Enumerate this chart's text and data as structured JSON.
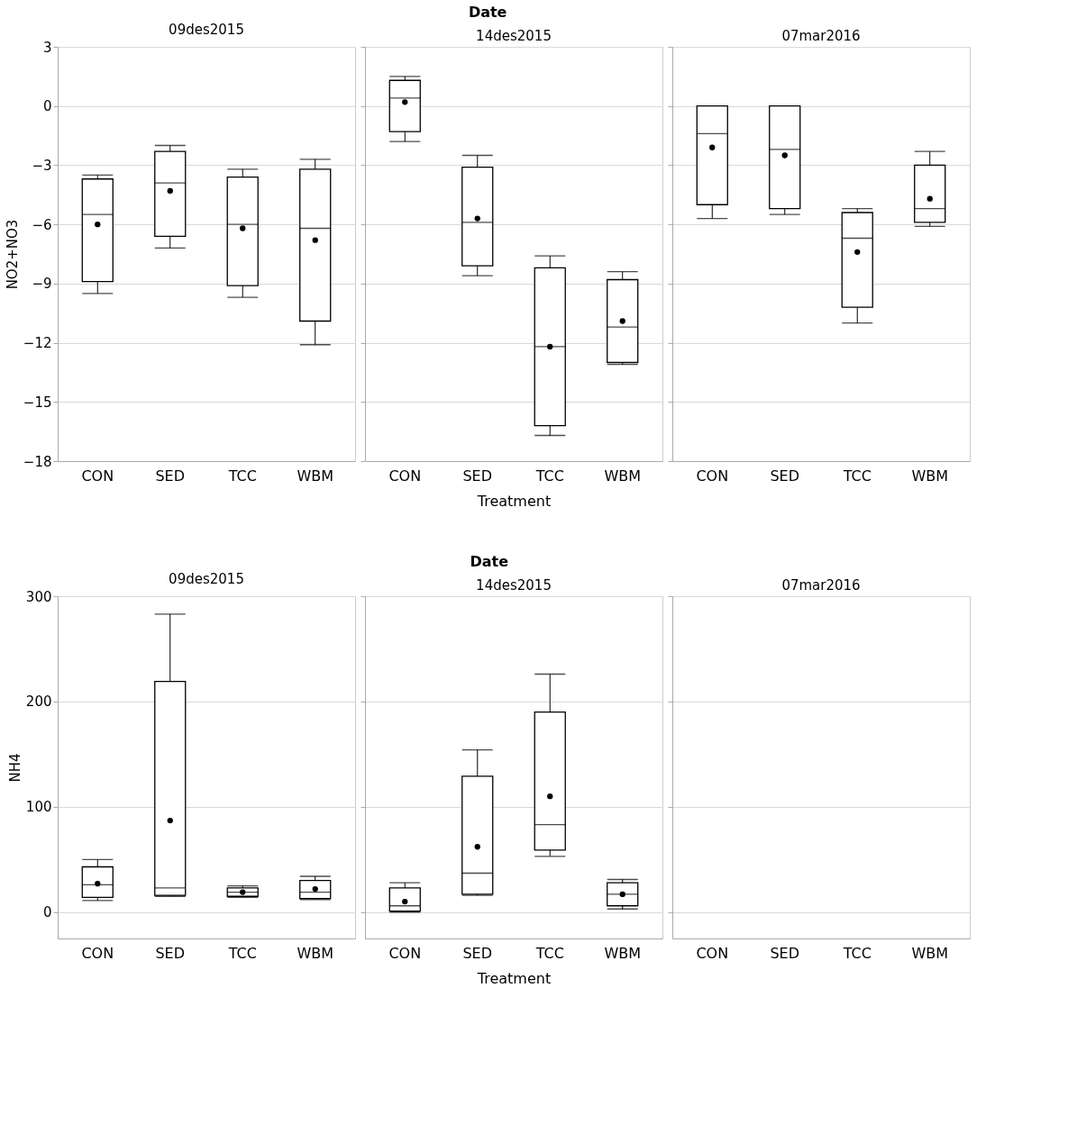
{
  "chart_data": [
    {
      "type": "box",
      "title": "09des2015",
      "annotations": [
        "Date"
      ],
      "ylabel": "NO2+NO3",
      "categories": [
        "CON",
        "SED",
        "TCC",
        "WBM"
      ],
      "ylim": [
        -18,
        3
      ],
      "yticks": [
        -18,
        -15,
        -12,
        -9,
        -6,
        -3,
        0,
        3
      ],
      "grid": "y",
      "color": "#000000",
      "boxes": [
        {
          "low": -9.5,
          "q1": -8.9,
          "median": -5.5,
          "q3": -3.7,
          "high": -3.5,
          "mean": -6.0
        },
        {
          "low": -7.2,
          "q1": -6.6,
          "median": -3.9,
          "q3": -2.3,
          "high": -2.0,
          "mean": -4.3
        },
        {
          "low": -9.7,
          "q1": -9.1,
          "median": -6.0,
          "q3": -3.6,
          "high": -3.2,
          "mean": -6.2
        },
        {
          "low": -12.1,
          "q1": -10.9,
          "median": -6.2,
          "q3": -3.2,
          "high": -2.7,
          "mean": -6.8
        }
      ]
    },
    {
      "type": "box",
      "title": "14des2015",
      "xlabel": "Treatment",
      "categories": [
        "CON",
        "SED",
        "TCC",
        "WBM"
      ],
      "ylim": [
        -18,
        3
      ],
      "yticks": [
        -18,
        -15,
        -12,
        -9,
        -6,
        -3,
        0,
        3
      ],
      "grid": "y",
      "tick_labels": "x",
      "color": "#000000",
      "boxes": [
        {
          "low": -1.8,
          "q1": -1.3,
          "median": 0.4,
          "q3": 1.3,
          "high": 1.5,
          "mean": 0.2
        },
        {
          "low": -8.6,
          "q1": -8.1,
          "median": -5.9,
          "q3": -3.1,
          "high": -2.5,
          "mean": -5.7
        },
        {
          "low": -16.7,
          "q1": -16.2,
          "median": -12.2,
          "q3": -8.2,
          "high": -7.6,
          "mean": -12.2
        },
        {
          "low": -13.1,
          "q1": -13.0,
          "median": -11.2,
          "q3": -8.8,
          "high": -8.4,
          "mean": -10.9
        }
      ]
    },
    {
      "type": "box",
      "title": "07mar2016",
      "categories": [
        "CON",
        "SED",
        "TCC",
        "WBM"
      ],
      "ylim": [
        -18,
        3
      ],
      "yticks": [
        -18,
        -15,
        -12,
        -9,
        -6,
        -3,
        0,
        3
      ],
      "grid": "y",
      "tick_labels": "x",
      "color": "#000000",
      "boxes": [
        {
          "low": -5.7,
          "q1": -5.0,
          "median": -1.4,
          "q3": 0.0,
          "high": 0.0,
          "mean": -2.1
        },
        {
          "low": -5.5,
          "q1": -5.2,
          "median": -2.2,
          "q3": 0.0,
          "high": 0.0,
          "mean": -2.5
        },
        {
          "low": -11.0,
          "q1": -10.2,
          "median": -6.7,
          "q3": -5.4,
          "high": -5.2,
          "mean": -7.4
        },
        {
          "low": -6.1,
          "q1": -5.9,
          "median": -5.2,
          "q3": -3.0,
          "high": -2.3,
          "mean": -4.7
        }
      ]
    },
    {
      "type": "box",
      "title": "09des2015",
      "annotations": [
        "Date"
      ],
      "ylabel": "NH4",
      "categories": [
        "CON",
        "SED",
        "TCC",
        "WBM"
      ],
      "ylim": [
        -25,
        300
      ],
      "yticks": [
        0,
        100,
        200,
        300
      ],
      "grid": "y",
      "color": "#000000",
      "boxes": [
        {
          "low": 11,
          "q1": 14,
          "median": 26,
          "q3": 43,
          "high": 50,
          "mean": 27
        },
        {
          "low": 15,
          "q1": 16,
          "median": 23,
          "q3": 219,
          "high": 283,
          "mean": 87
        },
        {
          "low": 14,
          "q1": 15,
          "median": 19,
          "q3": 23,
          "high": 25,
          "mean": 19
        },
        {
          "low": 12,
          "q1": 13,
          "median": 19,
          "q3": 30,
          "high": 34,
          "mean": 22
        }
      ]
    },
    {
      "type": "box",
      "title": "14des2015",
      "xlabel": "Treatment",
      "categories": [
        "CON",
        "SED",
        "TCC",
        "WBM"
      ],
      "ylim": [
        -25,
        300
      ],
      "yticks": [
        0,
        100,
        200,
        300
      ],
      "grid": "y",
      "tick_labels": "x",
      "color": "#000000",
      "boxes": [
        {
          "low": 0,
          "q1": 1,
          "median": 6,
          "q3": 23,
          "high": 28,
          "mean": 10
        },
        {
          "low": 16,
          "q1": 17,
          "median": 37,
          "q3": 129,
          "high": 154,
          "mean": 62
        },
        {
          "low": 53,
          "q1": 59,
          "median": 83,
          "q3": 190,
          "high": 226,
          "mean": 110
        },
        {
          "low": 3,
          "q1": 6,
          "median": 17,
          "q3": 28,
          "high": 31,
          "mean": 17
        }
      ]
    },
    {
      "type": "box",
      "title": "07mar2016",
      "categories": [
        "CON",
        "SED",
        "TCC",
        "WBM"
      ],
      "ylim": [
        -25,
        300
      ],
      "yticks": [
        0,
        100,
        200,
        300
      ],
      "grid": "y",
      "tick_labels": "x",
      "color": "#000000",
      "boxes": [
        null,
        null,
        null,
        null
      ]
    }
  ]
}
